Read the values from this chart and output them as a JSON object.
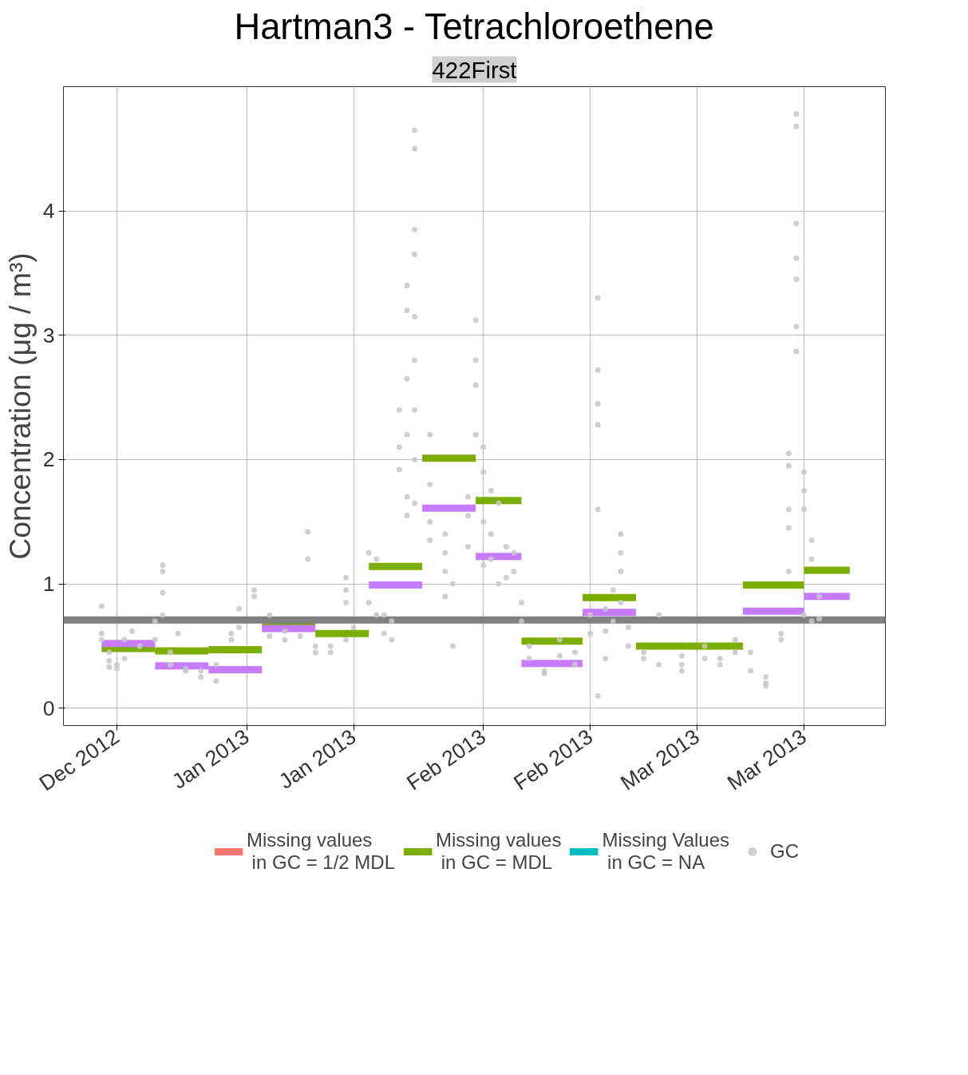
{
  "chart_data": {
    "type": "step",
    "title": "Hartman3 - Tetrachloroethene",
    "subtitle": "422First",
    "ylabel": "Concentration (μg / m³)",
    "xlim": [
      "2012-12-08",
      "2013-03-25T16:00"
    ],
    "ylim": [
      -0.14,
      5.0
    ],
    "xticks": [
      {
        "value": "2012-12-15",
        "label": "Dec 2012"
      },
      {
        "value": "2013-01-01",
        "label": "Jan 2013"
      },
      {
        "value": "2013-01-15",
        "label": "Jan 2013"
      },
      {
        "value": "2013-02-01",
        "label": "Feb 2013"
      },
      {
        "value": "2013-02-15",
        "label": "Feb 2013"
      },
      {
        "value": "2013-03-01",
        "label": "Mar 2013"
      },
      {
        "value": "2013-03-15",
        "label": "Mar 2013"
      }
    ],
    "yticks": [
      0,
      1,
      2,
      3,
      4
    ],
    "grid": true,
    "legend": "bottom",
    "line_style": "solid",
    "ref_lines": [
      {
        "axis": "y",
        "value": 0.71,
        "color": "#808080"
      }
    ],
    "series": [
      {
        "name": "Missing values\n in GC = 1/2 MDL",
        "color": "#f8766d"
      },
      {
        "name": "Missing values\n in GC = MDL",
        "color": "#7cae00",
        "x": [
          "2012-12-13",
          "2012-12-20",
          "2012-12-27",
          "2013-01-03",
          "2013-01-10",
          "2013-01-17",
          "2013-01-24",
          "2013-01-31",
          "2013-02-06",
          "2013-02-14",
          "2013-02-21",
          "2013-02-28",
          "2013-03-07",
          "2013-03-15",
          "2013-03-21"
        ],
        "values": [
          0.48,
          0.46,
          0.47,
          0.69,
          0.6,
          1.14,
          2.01,
          1.67,
          0.54,
          0.89,
          0.5,
          0.5,
          0.99,
          1.11,
          1.11
        ]
      },
      {
        "name": "Missing Values\n in GC = NA",
        "color": "#00bfc4"
      },
      {
        "color": "#c77cff",
        "x": [
          "2012-12-13",
          "2012-12-20",
          "2012-12-27",
          "2013-01-03",
          "2013-01-10",
          "2013-01-17",
          "2013-01-24",
          "2013-01-31",
          "2013-02-06",
          "2013-02-14",
          "2013-02-21",
          "2013-03-07",
          "2013-03-15",
          "2013-03-21"
        ],
        "values": [
          0.52,
          0.34,
          0.31,
          0.64,
          null,
          0.99,
          1.61,
          1.22,
          0.36,
          0.77,
          null,
          0.78,
          0.9,
          0.9
        ]
      },
      {
        "name": "GC",
        "color": "#c8c8c8",
        "type": "scatter",
        "marker": "circle",
        "x": [
          "2012-12-13",
          "2012-12-13",
          "2012-12-13",
          "2012-12-14",
          "2012-12-14",
          "2012-12-14",
          "2012-12-15",
          "2012-12-15",
          "2012-12-16",
          "2012-12-16",
          "2012-12-17",
          "2012-12-18",
          "2012-12-20",
          "2012-12-20",
          "2012-12-21",
          "2012-12-21",
          "2012-12-21",
          "2012-12-21",
          "2012-12-22",
          "2012-12-22",
          "2012-12-23",
          "2012-12-24",
          "2012-12-24",
          "2012-12-26",
          "2012-12-26",
          "2012-12-28",
          "2012-12-28",
          "2012-12-30",
          "2012-12-30",
          "2012-12-31",
          "2012-12-31",
          "2013-01-02",
          "2013-01-02",
          "2013-01-04",
          "2013-01-04",
          "2013-01-06",
          "2013-01-06",
          "2013-01-08",
          "2013-01-09",
          "2013-01-09",
          "2013-01-10",
          "2013-01-10",
          "2013-01-12",
          "2013-01-12",
          "2013-01-14",
          "2013-01-14",
          "2013-01-14",
          "2013-01-14",
          "2013-01-15",
          "2013-01-17",
          "2013-01-17",
          "2013-01-18",
          "2013-01-18",
          "2013-01-19",
          "2013-01-19",
          "2013-01-20",
          "2013-01-20",
          "2013-01-21",
          "2013-01-21",
          "2013-01-21",
          "2013-01-22",
          "2013-01-22",
          "2013-01-22",
          "2013-01-22",
          "2013-01-22",
          "2013-01-22",
          "2013-01-23",
          "2013-01-23",
          "2013-01-23",
          "2013-01-23",
          "2013-01-23",
          "2013-01-23",
          "2013-01-23",
          "2013-01-23",
          "2013-01-23",
          "2013-01-25",
          "2013-01-25",
          "2013-01-25",
          "2013-01-25",
          "2013-01-27",
          "2013-01-27",
          "2013-01-27",
          "2013-01-27",
          "2013-01-28",
          "2013-01-28",
          "2013-01-30",
          "2013-01-30",
          "2013-01-30",
          "2013-01-31",
          "2013-01-31",
          "2013-01-31",
          "2013-01-31",
          "2013-02-01",
          "2013-02-01",
          "2013-02-01",
          "2013-02-01",
          "2013-02-02",
          "2013-02-02",
          "2013-02-02",
          "2013-02-03",
          "2013-02-03",
          "2013-02-04",
          "2013-02-04",
          "2013-02-05",
          "2013-02-05",
          "2013-02-06",
          "2013-02-06",
          "2013-02-07",
          "2013-02-07",
          "2013-02-09",
          "2013-02-09",
          "2013-02-11",
          "2013-02-11",
          "2013-02-13",
          "2013-02-13",
          "2013-02-15",
          "2013-02-15",
          "2013-02-16",
          "2013-02-16",
          "2013-02-16",
          "2013-02-16",
          "2013-02-16",
          "2013-02-16",
          "2013-02-17",
          "2013-02-17",
          "2013-02-17",
          "2013-02-18",
          "2013-02-18",
          "2013-02-19",
          "2013-02-19",
          "2013-02-19",
          "2013-02-19",
          "2013-02-20",
          "2013-02-20",
          "2013-02-22",
          "2013-02-22",
          "2013-02-24",
          "2013-02-24",
          "2013-02-27",
          "2013-02-27",
          "2013-02-27",
          "2013-03-02",
          "2013-03-02",
          "2013-03-04",
          "2013-03-04",
          "2013-03-06",
          "2013-03-06",
          "2013-03-08",
          "2013-03-08",
          "2013-03-10",
          "2013-03-10",
          "2013-03-10",
          "2013-03-12",
          "2013-03-12",
          "2013-03-13",
          "2013-03-13",
          "2013-03-13",
          "2013-03-13",
          "2013-03-13",
          "2013-03-14",
          "2013-03-14",
          "2013-03-14",
          "2013-03-14",
          "2013-03-14",
          "2013-03-14",
          "2013-03-14",
          "2013-03-15",
          "2013-03-15",
          "2013-03-15",
          "2013-03-15",
          "2013-03-16",
          "2013-03-16",
          "2013-03-16",
          "2013-03-17",
          "2013-03-17"
        ],
        "values": [
          0.82,
          0.6,
          0.55,
          0.45,
          0.38,
          0.33,
          0.35,
          0.32,
          0.55,
          0.4,
          0.62,
          0.5,
          0.55,
          0.7,
          1.15,
          1.1,
          0.93,
          0.75,
          0.45,
          0.35,
          0.6,
          0.32,
          0.3,
          0.25,
          0.3,
          0.22,
          0.35,
          0.6,
          0.55,
          0.65,
          0.8,
          0.95,
          0.9,
          0.75,
          0.58,
          0.55,
          0.62,
          0.58,
          1.42,
          1.2,
          0.5,
          0.45,
          0.45,
          0.5,
          0.55,
          0.85,
          0.95,
          1.05,
          0.65,
          0.85,
          1.25,
          1.2,
          0.75,
          0.6,
          0.75,
          0.7,
          0.55,
          1.92,
          2.1,
          2.4,
          3.4,
          3.2,
          2.65,
          2.2,
          1.7,
          1.55,
          4.65,
          4.5,
          3.85,
          3.65,
          3.15,
          2.8,
          2.4,
          2.0,
          1.65,
          1.5,
          1.8,
          2.2,
          1.35,
          1.1,
          0.9,
          1.4,
          1.25,
          0.5,
          1.0,
          1.7,
          1.55,
          1.3,
          3.12,
          2.8,
          2.6,
          2.2,
          2.1,
          1.9,
          1.5,
          1.15,
          1.75,
          1.4,
          1.2,
          1.0,
          1.65,
          1.3,
          1.05,
          1.1,
          1.25,
          0.85,
          0.7,
          0.5,
          0.4,
          0.3,
          0.28,
          0.42,
          0.55,
          0.35,
          0.45,
          0.6,
          0.75,
          3.3,
          2.72,
          2.45,
          2.28,
          1.6,
          0.1,
          0.8,
          0.62,
          0.4,
          0.95,
          0.7,
          1.4,
          1.25,
          1.1,
          0.85,
          0.65,
          0.5,
          0.45,
          0.4,
          0.35,
          0.75,
          0.42,
          0.35,
          0.3,
          0.5,
          0.4,
          0.35,
          0.4,
          0.55,
          0.45,
          0.3,
          0.45,
          0.25,
          0.2,
          0.18,
          0.6,
          0.55,
          2.05,
          1.95,
          1.6,
          1.45,
          1.1,
          4.78,
          4.68,
          3.9,
          3.62,
          3.45,
          3.07,
          2.87,
          1.9,
          1.75,
          1.6,
          0.75,
          1.35,
          1.2,
          0.7,
          0.9,
          0.72
        ]
      }
    ]
  }
}
